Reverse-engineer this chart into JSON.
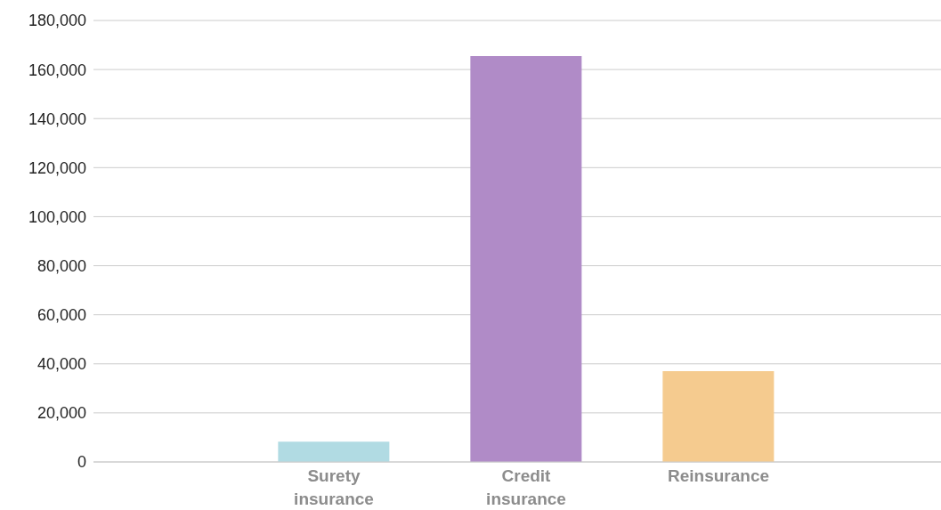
{
  "chart_data": {
    "type": "bar",
    "categories": [
      "Surety insurance",
      "Credit insurance",
      "Reinsurance"
    ],
    "values": [
      8300,
      165500,
      37000
    ],
    "colors": [
      "#b1dbe3",
      "#b08bc7",
      "#f5cb8f"
    ],
    "ylim": [
      0,
      180000
    ],
    "yticks": [
      0,
      {
        "value": 20000,
        "label": "20,000"
      },
      {
        "value": 40000,
        "label": "40,000"
      },
      {
        "value": 60000,
        "label": "60,000"
      },
      {
        "value": 80000,
        "label": "80,000"
      },
      {
        "value": 100000,
        "label": "100,000"
      },
      {
        "value": 120000,
        "label": "120,000"
      },
      {
        "value": 140000,
        "label": "140,000"
      },
      {
        "value": 160000,
        "label": "160,000"
      },
      {
        "value": 180000,
        "label": "180,000"
      }
    ],
    "grid": "y"
  }
}
